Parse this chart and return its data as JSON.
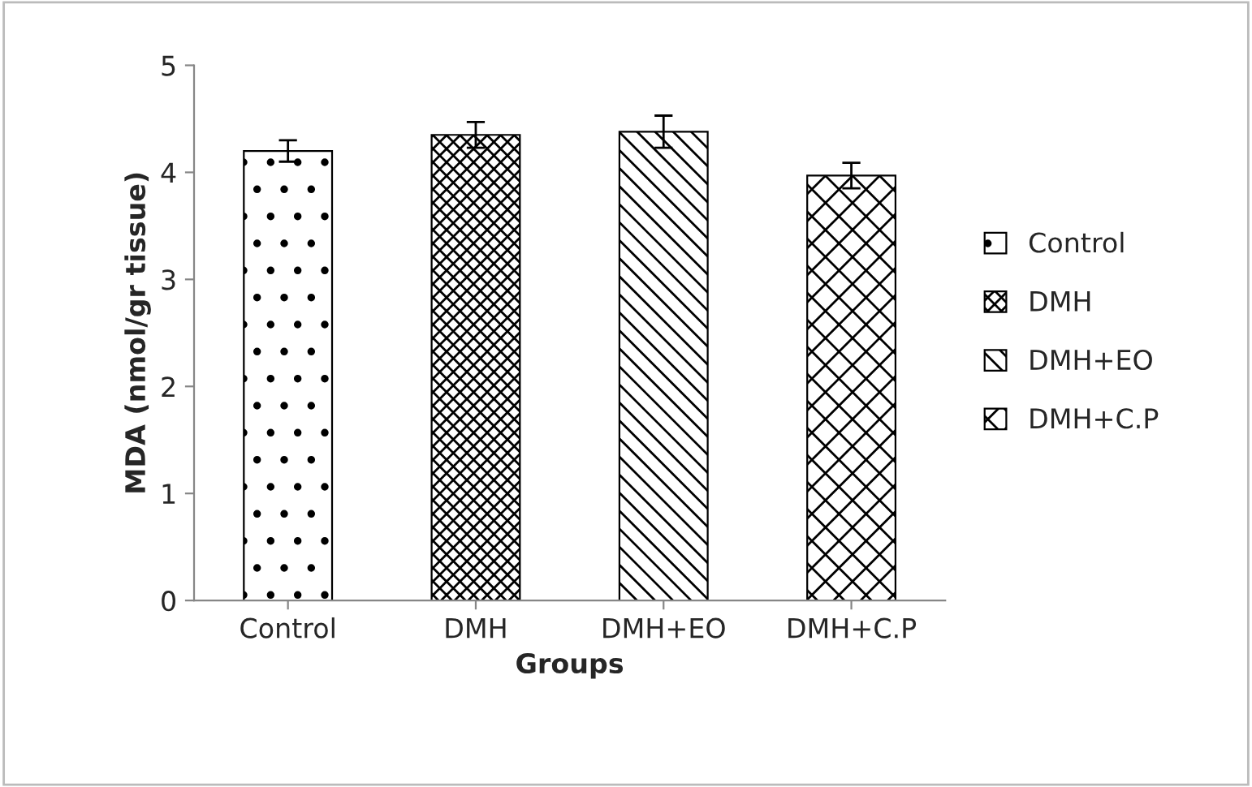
{
  "chart_data": {
    "type": "bar",
    "xlabel": "Groups",
    "ylabel": "MDA (nmol/gr tissue)",
    "categories": [
      "Control",
      "DMH",
      "DMH+EO",
      "DMH+C.P"
    ],
    "series": [
      {
        "name": "Control",
        "color": "#000000",
        "values": [
          4.2,
          null,
          null,
          null
        ],
        "errors": [
          0.1,
          null,
          null,
          null
        ]
      },
      {
        "name": "DMH",
        "color": "#000000",
        "values": [
          null,
          4.35,
          null,
          null
        ],
        "errors": [
          null,
          0.12,
          null,
          null
        ]
      },
      {
        "name": "DMH+EO",
        "color": "#000000",
        "values": [
          null,
          null,
          4.38,
          null
        ],
        "errors": [
          null,
          null,
          0.15,
          null
        ]
      },
      {
        "name": "DMH+C.P",
        "color": "#000000",
        "values": [
          null,
          null,
          null,
          3.97
        ],
        "errors": [
          null,
          null,
          null,
          0.12
        ]
      }
    ],
    "ylim": [
      0,
      5
    ],
    "yticks": [
      0,
      1,
      2,
      3,
      4,
      5
    ],
    "grid": false,
    "legend": "right"
  }
}
